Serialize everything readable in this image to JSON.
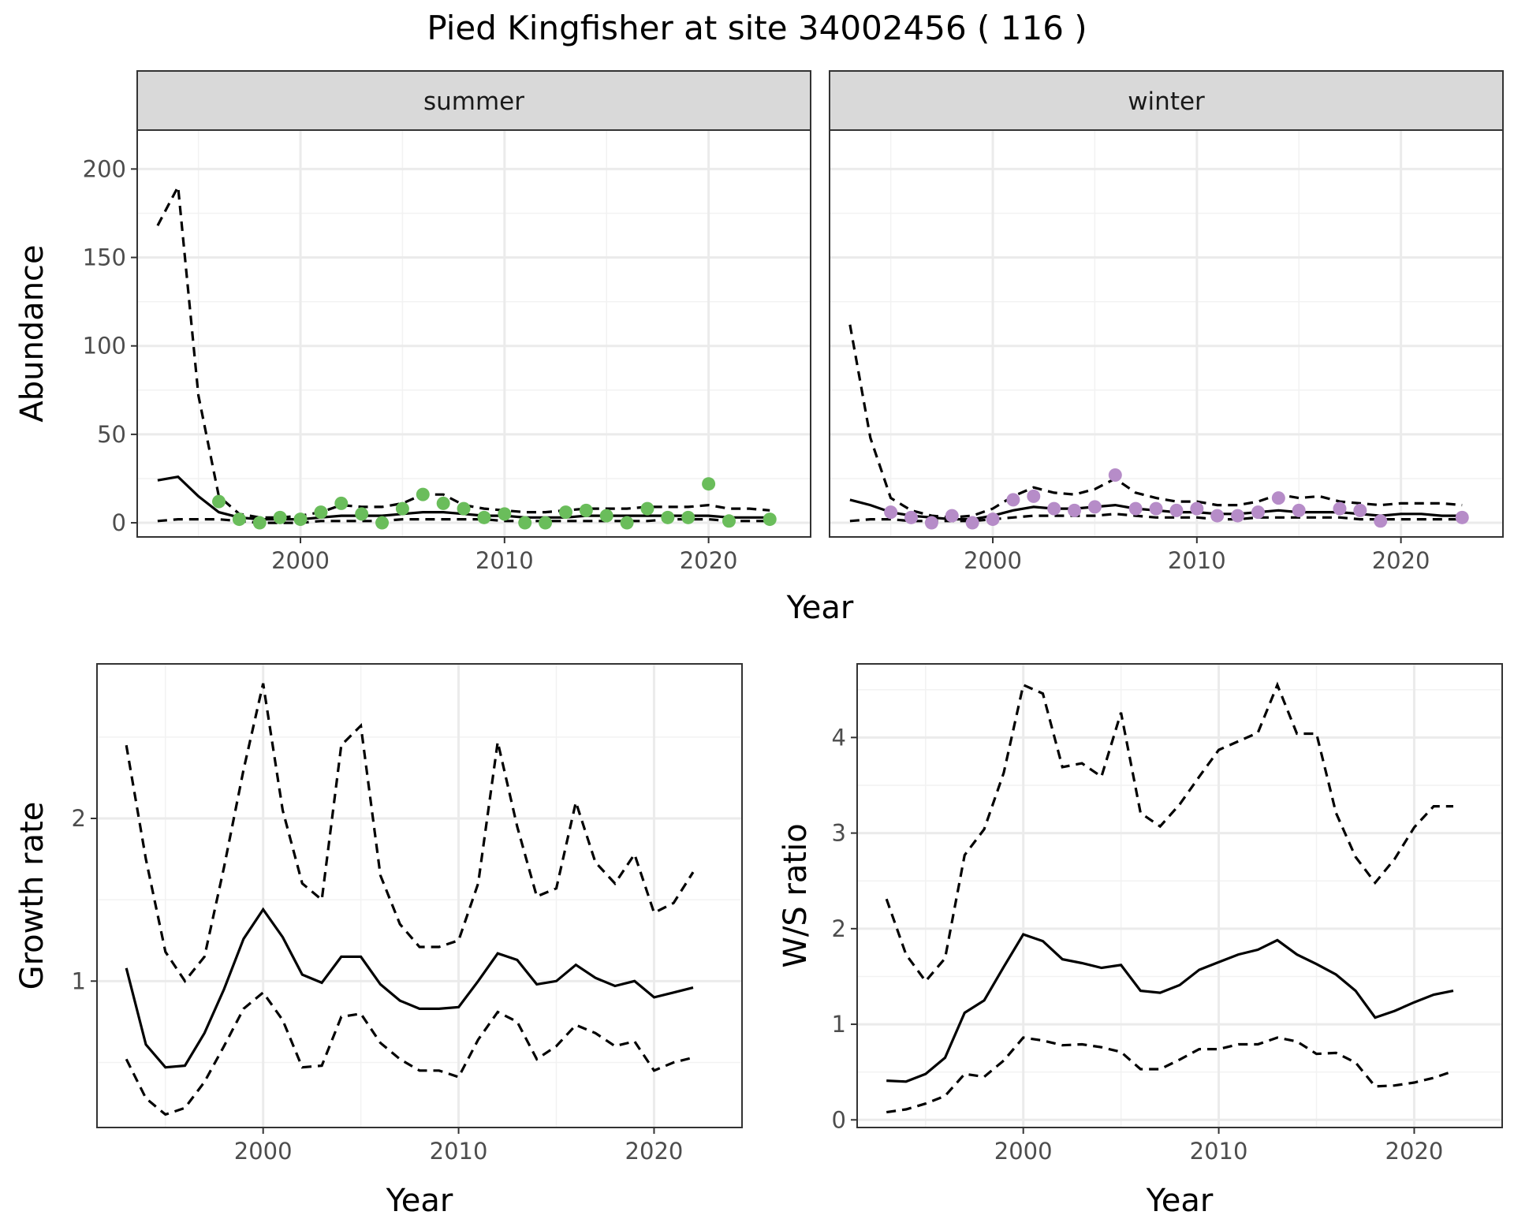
{
  "title": "Pied Kingfisher at site 34002456 ( 116 )",
  "colors": {
    "summer_points": "#6abd5b",
    "winter_points": "#b68cc8",
    "lines": "#000000"
  },
  "chart_data": [
    {
      "type": "line",
      "facet": "summer",
      "xlabel": "Year",
      "ylabel": "Abundance",
      "xlim": [
        1992,
        2025
      ],
      "ylim": [
        -8,
        222
      ],
      "x_ticks": [
        2000,
        2010,
        2020
      ],
      "y_ticks": [
        0,
        50,
        100,
        150,
        200
      ],
      "grid": true,
      "points": {
        "x": [
          1996,
          1997,
          1998,
          1999,
          2000,
          2001,
          2002,
          2003,
          2004,
          2005,
          2006,
          2007,
          2008,
          2009,
          2010,
          2011,
          2012,
          2013,
          2014,
          2015,
          2016,
          2017,
          2018,
          2019,
          2020,
          2021,
          2023
        ],
        "y": [
          12,
          2,
          0,
          3,
          2,
          6,
          11,
          5,
          0,
          8,
          16,
          11,
          8,
          3,
          5,
          0,
          0,
          6,
          7,
          4,
          0,
          8,
          3,
          3,
          22,
          1,
          2
        ]
      },
      "series": [
        {
          "name": "",
          "style": "solid",
          "x": [
            1993,
            1994,
            1995,
            1996,
            1997,
            1998,
            1999,
            2000,
            2001,
            2002,
            2003,
            2004,
            2005,
            2006,
            2007,
            2008,
            2009,
            2010,
            2011,
            2012,
            2013,
            2014,
            2015,
            2016,
            2017,
            2018,
            2019,
            2020,
            2021,
            2022,
            2023
          ],
          "values": [
            24,
            26,
            15,
            6,
            3,
            2,
            2,
            2,
            3,
            4,
            4,
            4,
            5,
            6,
            6,
            5,
            4,
            4,
            3,
            3,
            3,
            4,
            4,
            4,
            4,
            4,
            4,
            4,
            3,
            3,
            3
          ]
        },
        {
          "name": "",
          "style": "dashed",
          "x": [
            1993,
            1994,
            1995,
            1996,
            1997,
            1998,
            1999,
            2000,
            2001,
            2002,
            2003,
            2004,
            2005,
            2006,
            2007,
            2008,
            2009,
            2010,
            2011,
            2012,
            2013,
            2014,
            2015,
            2016,
            2017,
            2018,
            2019,
            2020,
            2021,
            2022,
            2023
          ],
          "values": [
            168,
            190,
            72,
            15,
            5,
            3,
            3,
            4,
            6,
            10,
            9,
            9,
            11,
            16,
            16,
            10,
            8,
            7,
            6,
            6,
            7,
            8,
            8,
            8,
            9,
            9,
            9,
            10,
            8,
            8,
            7
          ]
        },
        {
          "name": "",
          "style": "dashed",
          "x": [
            1993,
            1994,
            1995,
            1996,
            1997,
            1998,
            1999,
            2000,
            2001,
            2002,
            2003,
            2004,
            2005,
            2006,
            2007,
            2008,
            2009,
            2010,
            2011,
            2012,
            2013,
            2014,
            2015,
            2016,
            2017,
            2018,
            2019,
            2020,
            2021,
            2022,
            2023
          ],
          "values": [
            1,
            2,
            2,
            2,
            1,
            0,
            0,
            0,
            1,
            1,
            1,
            1,
            2,
            2,
            2,
            2,
            2,
            1,
            1,
            1,
            1,
            1,
            1,
            1,
            1,
            2,
            2,
            2,
            1,
            1,
            1
          ]
        }
      ]
    },
    {
      "type": "line",
      "facet": "winter",
      "xlabel": "Year",
      "ylabel": "Abundance",
      "xlim": [
        1992,
        2025
      ],
      "ylim": [
        -8,
        222
      ],
      "x_ticks": [
        2000,
        2010,
        2020
      ],
      "y_ticks": [
        0,
        50,
        100,
        150,
        200
      ],
      "grid": true,
      "points": {
        "x": [
          1995,
          1996,
          1997,
          1998,
          1999,
          2000,
          2001,
          2002,
          2003,
          2004,
          2005,
          2006,
          2007,
          2008,
          2009,
          2010,
          2011,
          2012,
          2013,
          2014,
          2015,
          2017,
          2018,
          2019,
          2023
        ],
        "y": [
          6,
          3,
          0,
          4,
          0,
          2,
          13,
          15,
          8,
          7,
          9,
          27,
          8,
          8,
          7,
          8,
          4,
          4,
          6,
          14,
          7,
          8,
          7,
          1,
          3
        ]
      },
      "series": [
        {
          "name": "",
          "style": "solid",
          "x": [
            1993,
            1994,
            1995,
            1996,
            1997,
            1998,
            1999,
            2000,
            2001,
            2002,
            2003,
            2004,
            2005,
            2006,
            2007,
            2008,
            2009,
            2010,
            2011,
            2012,
            2013,
            2014,
            2015,
            2016,
            2017,
            2018,
            2019,
            2020,
            2021,
            2022,
            2023
          ],
          "values": [
            13,
            10,
            6,
            4,
            3,
            2,
            2,
            4,
            7,
            9,
            8,
            8,
            9,
            10,
            8,
            7,
            6,
            6,
            5,
            5,
            6,
            7,
            6,
            6,
            6,
            5,
            4,
            5,
            5,
            4,
            4
          ]
        },
        {
          "name": "",
          "style": "dashed",
          "x": [
            1993,
            1994,
            1995,
            1996,
            1997,
            1998,
            1999,
            2000,
            2001,
            2002,
            2003,
            2004,
            2005,
            2006,
            2007,
            2008,
            2009,
            2010,
            2011,
            2012,
            2013,
            2014,
            2015,
            2016,
            2017,
            2018,
            2019,
            2020,
            2021,
            2022,
            2023
          ],
          "values": [
            112,
            48,
            14,
            7,
            4,
            3,
            4,
            8,
            15,
            20,
            17,
            16,
            19,
            25,
            17,
            14,
            12,
            12,
            10,
            10,
            12,
            16,
            14,
            15,
            12,
            11,
            10,
            11,
            11,
            11,
            10
          ]
        },
        {
          "name": "",
          "style": "dashed",
          "x": [
            1993,
            1994,
            1995,
            1996,
            1997,
            1998,
            1999,
            2000,
            2001,
            2002,
            2003,
            2004,
            2005,
            2006,
            2007,
            2008,
            2009,
            2010,
            2011,
            2012,
            2013,
            2014,
            2015,
            2016,
            2017,
            2018,
            2019,
            2020,
            2021,
            2022,
            2023
          ],
          "values": [
            1,
            2,
            2,
            1,
            1,
            1,
            1,
            2,
            3,
            4,
            4,
            4,
            4,
            5,
            4,
            3,
            3,
            3,
            2,
            2,
            3,
            3,
            3,
            3,
            3,
            2,
            2,
            2,
            2,
            2,
            2
          ]
        }
      ]
    },
    {
      "type": "line",
      "xlabel": "Year",
      "ylabel": "Growth rate",
      "xlim": [
        1991.5,
        2024.5
      ],
      "ylim": [
        0.1,
        2.95
      ],
      "x_ticks": [
        2000,
        2010,
        2020
      ],
      "y_ticks": [
        1,
        2
      ],
      "y_minor": [
        0.5,
        1.5,
        2.5
      ],
      "grid": true,
      "series": [
        {
          "name": "",
          "style": "solid",
          "x": [
            1993,
            1994,
            1995,
            1996,
            1997,
            1998,
            1999,
            2000,
            2001,
            2002,
            2003,
            2004,
            2005,
            2006,
            2007,
            2008,
            2009,
            2010,
            2011,
            2012,
            2013,
            2014,
            2015,
            2016,
            2017,
            2018,
            2019,
            2020,
            2021,
            2022
          ],
          "values": [
            1.08,
            0.61,
            0.47,
            0.48,
            0.68,
            0.95,
            1.26,
            1.44,
            1.27,
            1.04,
            0.99,
            1.15,
            1.15,
            0.98,
            0.88,
            0.83,
            0.83,
            0.84,
            1.0,
            1.17,
            1.13,
            0.98,
            1.0,
            1.1,
            1.02,
            0.97,
            1.0,
            0.9,
            0.93,
            0.96
          ]
        },
        {
          "name": "",
          "style": "dashed",
          "x": [
            1993,
            1994,
            1995,
            1996,
            1997,
            1998,
            1999,
            2000,
            2001,
            2002,
            2003,
            2004,
            2005,
            2006,
            2007,
            2008,
            2009,
            2010,
            2011,
            2012,
            2013,
            2014,
            2015,
            2016,
            2017,
            2018,
            2019,
            2020,
            2021,
            2022
          ],
          "values": [
            2.45,
            1.75,
            1.18,
            1.0,
            1.15,
            1.7,
            2.3,
            2.83,
            2.05,
            1.6,
            1.5,
            2.45,
            2.57,
            1.65,
            1.35,
            1.21,
            1.21,
            1.25,
            1.6,
            2.47,
            1.95,
            1.52,
            1.57,
            2.1,
            1.73,
            1.6,
            1.78,
            1.42,
            1.48,
            1.67
          ]
        },
        {
          "name": "",
          "style": "dashed",
          "x": [
            1993,
            1994,
            1995,
            1996,
            1997,
            1998,
            1999,
            2000,
            2001,
            2002,
            2003,
            2004,
            2005,
            2006,
            2007,
            2008,
            2009,
            2010,
            2011,
            2012,
            2013,
            2014,
            2015,
            2016,
            2017,
            2018,
            2019,
            2020,
            2021,
            2022
          ],
          "values": [
            0.52,
            0.28,
            0.18,
            0.22,
            0.38,
            0.6,
            0.83,
            0.93,
            0.76,
            0.47,
            0.48,
            0.78,
            0.8,
            0.62,
            0.52,
            0.45,
            0.45,
            0.41,
            0.64,
            0.81,
            0.75,
            0.52,
            0.6,
            0.73,
            0.68,
            0.6,
            0.63,
            0.45,
            0.5,
            0.53
          ]
        }
      ]
    },
    {
      "type": "line",
      "xlabel": "Year",
      "ylabel": "W/S ratio",
      "xlim": [
        1991.5,
        2024.5
      ],
      "ylim": [
        -0.08,
        4.77
      ],
      "x_ticks": [
        2000,
        2010,
        2020
      ],
      "y_ticks": [
        0,
        1,
        2,
        3,
        4
      ],
      "y_minor": [
        0.5,
        1.5,
        2.5,
        3.5,
        4.5
      ],
      "grid": true,
      "series": [
        {
          "name": "",
          "style": "solid",
          "x": [
            1993,
            1994,
            1995,
            1996,
            1997,
            1998,
            1999,
            2000,
            2001,
            2002,
            2003,
            2004,
            2005,
            2006,
            2007,
            2008,
            2009,
            2010,
            2011,
            2012,
            2013,
            2014,
            2015,
            2016,
            2017,
            2018,
            2019,
            2020,
            2021,
            2022
          ],
          "values": [
            0.41,
            0.4,
            0.48,
            0.65,
            1.12,
            1.25,
            1.6,
            1.94,
            1.87,
            1.68,
            1.64,
            1.59,
            1.62,
            1.35,
            1.33,
            1.41,
            1.57,
            1.65,
            1.73,
            1.78,
            1.88,
            1.73,
            1.63,
            1.52,
            1.35,
            1.07,
            1.14,
            1.23,
            1.31,
            1.35
          ]
        },
        {
          "name": "",
          "style": "dashed",
          "x": [
            1993,
            1994,
            1995,
            1996,
            1997,
            1998,
            1999,
            2000,
            2001,
            2002,
            2003,
            2004,
            2005,
            2006,
            2007,
            2008,
            2009,
            2010,
            2011,
            2012,
            2013,
            2014,
            2015,
            2016,
            2017,
            2018,
            2019,
            2020,
            2021,
            2022
          ],
          "values": [
            2.31,
            1.73,
            1.45,
            1.69,
            2.77,
            3.04,
            3.63,
            4.55,
            4.46,
            3.69,
            3.73,
            3.59,
            4.26,
            3.21,
            3.07,
            3.3,
            3.59,
            3.87,
            3.96,
            4.05,
            4.55,
            4.04,
            4.04,
            3.21,
            2.75,
            2.48,
            2.73,
            3.06,
            3.28,
            3.28
          ]
        },
        {
          "name": "",
          "style": "dashed",
          "x": [
            1993,
            1994,
            1995,
            1996,
            1997,
            1998,
            1999,
            2000,
            2001,
            2002,
            2003,
            2004,
            2005,
            2006,
            2007,
            2008,
            2009,
            2010,
            2011,
            2012,
            2013,
            2014,
            2015,
            2016,
            2017,
            2018,
            2019,
            2020,
            2021,
            2022
          ],
          "values": [
            0.08,
            0.11,
            0.17,
            0.25,
            0.48,
            0.45,
            0.62,
            0.86,
            0.83,
            0.78,
            0.79,
            0.76,
            0.71,
            0.53,
            0.53,
            0.63,
            0.74,
            0.74,
            0.79,
            0.79,
            0.86,
            0.82,
            0.69,
            0.7,
            0.6,
            0.35,
            0.36,
            0.39,
            0.44,
            0.51
          ]
        }
      ]
    }
  ]
}
